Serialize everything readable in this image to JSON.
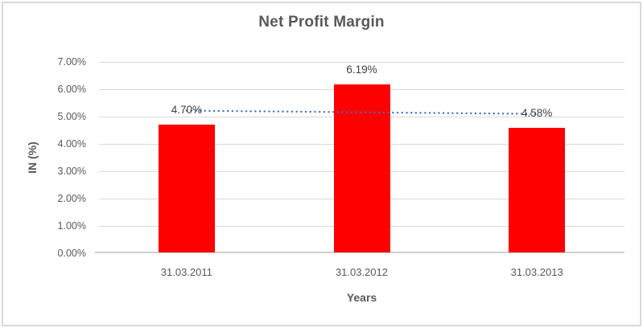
{
  "window": {
    "background": "#FFFFFF",
    "border_color": "#D9D9D9"
  },
  "chart_data": {
    "type": "bar",
    "title": "Net Profit Margin",
    "categories": [
      "31.03.2011",
      "31.03.2012",
      "31.03.2013"
    ],
    "values": [
      4.7,
      6.19,
      4.58
    ],
    "data_labels": [
      "4.70%",
      "6.19%",
      "4.58%"
    ],
    "xlabel": "Years",
    "ylabel": "IN (%)",
    "ylim": [
      0,
      7
    ],
    "y_ticks": [
      0,
      1,
      2,
      3,
      4,
      5,
      6,
      7
    ],
    "y_tick_labels": [
      "0.00%",
      "1.00%",
      "2.00%",
      "3.00%",
      "4.00%",
      "5.00%",
      "6.00%",
      "7.00%"
    ],
    "grid": true,
    "legend": false,
    "bar_color": "#FF0000",
    "gridline_color": "#D9D9D9",
    "axis_line_color": "#CFCFCF",
    "text_color": "#595959",
    "data_label_color": "#404040",
    "trendline": {
      "fit": "linear",
      "style": "dotted",
      "color": "#4472C4"
    }
  }
}
